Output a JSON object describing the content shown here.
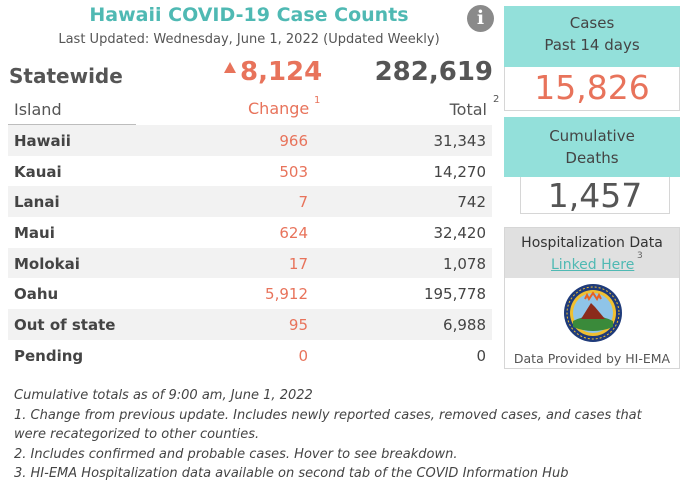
{
  "header": {
    "title": "Hawaii COVID-19 Case Counts",
    "last_updated": "Last Updated: Wednesday, June 1, 2022 (Updated Weekly)",
    "info_icon": "info-icon",
    "info_glyph": "i"
  },
  "statewide": {
    "label": "Statewide",
    "change": "8,124",
    "total": "282,619",
    "trend_icon": "up-triangle-icon"
  },
  "table": {
    "columns": {
      "island": "Island",
      "change": "Change",
      "change_note": "1",
      "total": "Total",
      "total_note": "2"
    },
    "rows": [
      {
        "island": "Hawaii",
        "change": "966",
        "total": "31,343"
      },
      {
        "island": "Kauai",
        "change": "503",
        "total": "14,270"
      },
      {
        "island": "Lanai",
        "change": "7",
        "total": "742"
      },
      {
        "island": "Maui",
        "change": "624",
        "total": "32,420"
      },
      {
        "island": "Molokai",
        "change": "17",
        "total": "1,078"
      },
      {
        "island": "Oahu",
        "change": "5,912",
        "total": "195,778"
      },
      {
        "island": "Out of state",
        "change": "95",
        "total": "6,988"
      },
      {
        "island": "Pending",
        "change": "0",
        "total": "0"
      }
    ]
  },
  "cards": {
    "cases": {
      "line1": "Cases",
      "line2": "Past 14 days",
      "value": "15,826"
    },
    "deaths": {
      "line1": "Cumulative",
      "line2": "Deaths",
      "value": "1,457"
    }
  },
  "hospitalization": {
    "title": "Hospitalization Data",
    "link": "Linked Here",
    "link_note": "3",
    "seal_icon": "hi-ema-seal-icon",
    "source": "Data Provided by HI-EMA"
  },
  "footnotes": [
    "Cumulative totals as of 9:00 am, June 1, 2022",
    "1. Change from previous update. Includes newly reported cases, removed cases, and cases that were recategorized to other counties.",
    "2. Includes confirmed and probable cases. Hover to see breakdown.",
    "3. HI-EMA Hospitalization data available on second tab of the COVID Information Hub"
  ],
  "colors": {
    "teal": "#4fb9b3",
    "card_teal": "#93e0da",
    "orange": "#e8735b",
    "gray_text": "#555555"
  }
}
